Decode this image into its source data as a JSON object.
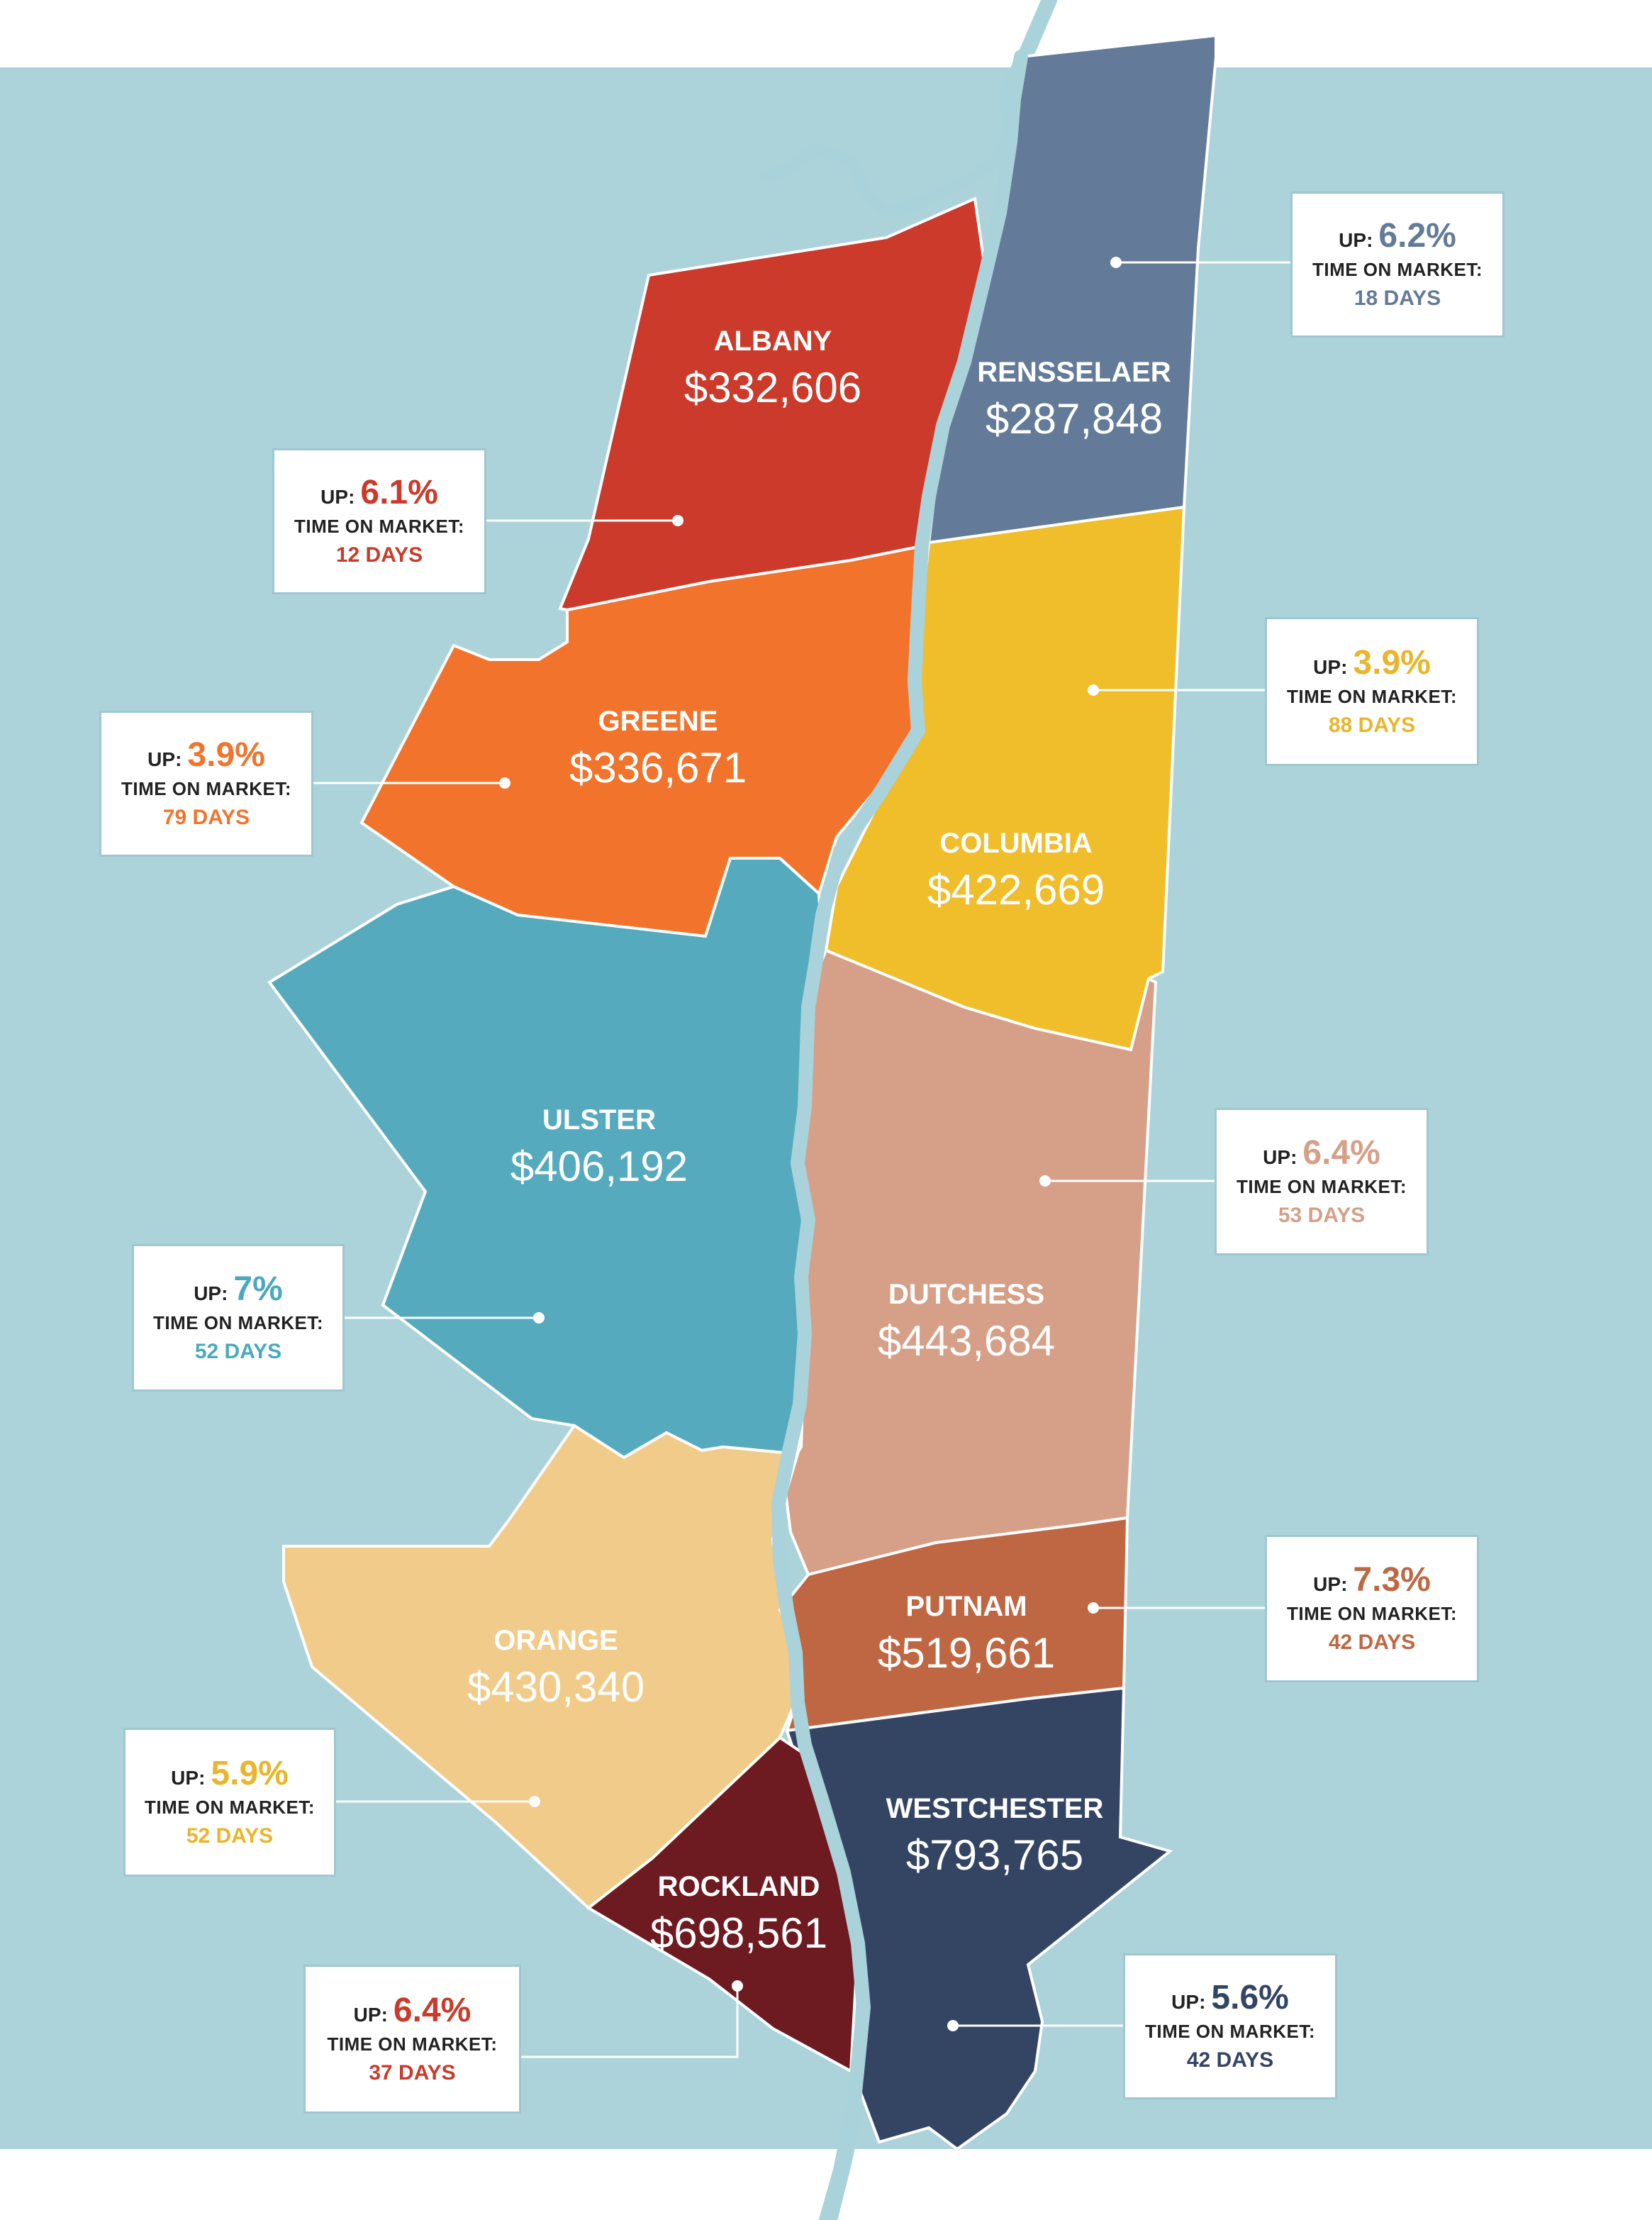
{
  "colors": {
    "background_water": "#acd3da",
    "river": "#a9d2da",
    "border": "#ffffff",
    "callout_border": "#9ec7cf"
  },
  "labels": {
    "up": "UP:",
    "time_on_market": "TIME ON MARKET:"
  },
  "counties": [
    {
      "id": "albany",
      "name": "ALBANY",
      "price": "$332,606",
      "up": "6.1%",
      "days": "12 DAYS",
      "color": "#cb3a2a",
      "accent": "#cb3a2a"
    },
    {
      "id": "rensselaer",
      "name": "RENSSELAER",
      "price": "$287,848",
      "up": "6.2%",
      "days": "18 DAYS",
      "color": "#637b98",
      "accent": "#637b98"
    },
    {
      "id": "greene",
      "name": "GREENE",
      "price": "$336,671",
      "up": "3.9%",
      "days": "79 DAYS",
      "color": "#f2742c",
      "accent": "#f2742c"
    },
    {
      "id": "columbia",
      "name": "COLUMBIA",
      "price": "$422,669",
      "up": "3.9%",
      "days": "88 DAYS",
      "color": "#f0bd2b",
      "accent": "#eab52a"
    },
    {
      "id": "ulster",
      "name": "ULSTER",
      "price": "$406,192",
      "up": "7%",
      "days": "52 DAYS",
      "color": "#55abbd",
      "accent": "#4aa9bd"
    },
    {
      "id": "dutchess",
      "name": "DUTCHESS",
      "price": "$443,684",
      "up": "6.4%",
      "days": "53 DAYS",
      "color": "#d69f87",
      "accent": "#d69f87"
    },
    {
      "id": "orange",
      "name": "ORANGE",
      "price": "$430,340",
      "up": "5.9%",
      "days": "52 DAYS",
      "color": "#f0cb8a",
      "accent": "#eab52a"
    },
    {
      "id": "putnam",
      "name": "PUTNAM",
      "price": "$519,661",
      "up": "7.3%",
      "days": "42 DAYS",
      "color": "#bf6743",
      "accent": "#bf6743"
    },
    {
      "id": "westchester",
      "name": "WESTCHESTER",
      "price": "$793,765",
      "up": "5.6%",
      "days": "42 DAYS",
      "color": "#344564",
      "accent": "#344564"
    },
    {
      "id": "rockland",
      "name": "ROCKLAND",
      "price": "$698,561",
      "up": "6.4%",
      "days": "37 DAYS",
      "color": "#6e1a21",
      "accent": "#cb3a2a"
    }
  ]
}
